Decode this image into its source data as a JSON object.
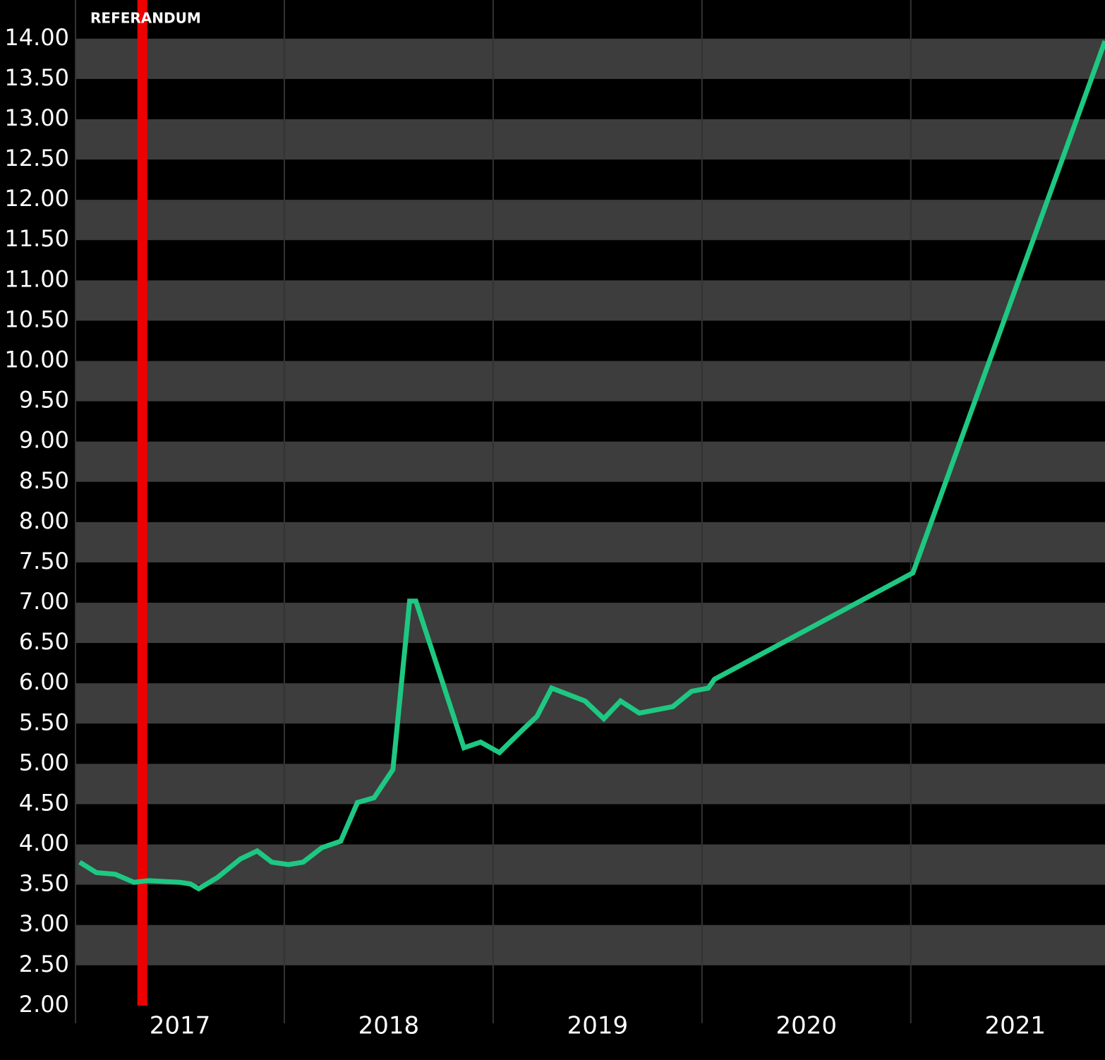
{
  "chart_data": {
    "type": "line",
    "annotations": [
      {
        "text": "REFERANDUM",
        "x": 2017.32,
        "color": "#ee0000"
      }
    ],
    "x": [
      2017.02,
      2017.1,
      2017.19,
      2017.28,
      2017.35,
      2017.5,
      2017.55,
      2017.59,
      2017.68,
      2017.79,
      2017.87,
      2017.94,
      2018.02,
      2018.09,
      2018.18,
      2018.27,
      2018.35,
      2018.43,
      2018.52,
      2018.6,
      2018.63,
      2018.86,
      2018.94,
      2019.03,
      2019.14,
      2019.21,
      2019.28,
      2019.44,
      2019.53,
      2019.61,
      2019.7,
      2019.86,
      2019.95,
      2020.03,
      2020.06,
      2021.01,
      2021.93
    ],
    "values": [
      3.78,
      3.65,
      3.63,
      3.53,
      3.55,
      3.53,
      3.51,
      3.45,
      3.59,
      3.82,
      3.92,
      3.78,
      3.75,
      3.78,
      3.96,
      4.04,
      4.52,
      4.58,
      4.93,
      7.02,
      7.02,
      5.2,
      5.27,
      5.14,
      5.42,
      5.59,
      5.94,
      5.78,
      5.56,
      5.78,
      5.63,
      5.71,
      5.9,
      5.94,
      6.05,
      7.37,
      13.97
    ],
    "color": "#1ec882",
    "xlim": [
      2017,
      2021.93
    ],
    "xticks": [
      {
        "value": 2017.5,
        "label": "2017"
      },
      {
        "value": 2018.5,
        "label": "2018"
      },
      {
        "value": 2019.5,
        "label": "2019"
      },
      {
        "value": 2020.5,
        "label": "2020"
      },
      {
        "value": 2021.5,
        "label": "2021"
      }
    ],
    "ylim": [
      1.78,
      14.48
    ],
    "yticks": [
      {
        "value": 2,
        "label": "2.00"
      },
      {
        "value": 2.5,
        "label": "2.50"
      },
      {
        "value": 3,
        "label": "3.00"
      },
      {
        "value": 3.5,
        "label": "3.50"
      },
      {
        "value": 4,
        "label": "4.00"
      },
      {
        "value": 4.5,
        "label": "4.50"
      },
      {
        "value": 5,
        "label": "5.00"
      },
      {
        "value": 5.5,
        "label": "5.50"
      },
      {
        "value": 6,
        "label": "6.00"
      },
      {
        "value": 6.5,
        "label": "6.50"
      },
      {
        "value": 7,
        "label": "7.00"
      },
      {
        "value": 7.5,
        "label": "7.50"
      },
      {
        "value": 8,
        "label": "8.00"
      },
      {
        "value": 8.5,
        "label": "8.50"
      },
      {
        "value": 9,
        "label": "9.00"
      },
      {
        "value": 9.5,
        "label": "9.50"
      },
      {
        "value": 10,
        "label": "10.00"
      },
      {
        "value": 10.5,
        "label": "10.50"
      },
      {
        "value": 11,
        "label": "11.00"
      },
      {
        "value": 11.5,
        "label": "11.50"
      },
      {
        "value": 12,
        "label": "12.00"
      },
      {
        "value": 12.5,
        "label": "12.50"
      },
      {
        "value": 13,
        "label": "13.00"
      },
      {
        "value": 13.5,
        "label": "13.50"
      },
      {
        "value": 14,
        "label": "14.00"
      }
    ],
    "grid": true,
    "band_color": "#3d3d3d"
  }
}
